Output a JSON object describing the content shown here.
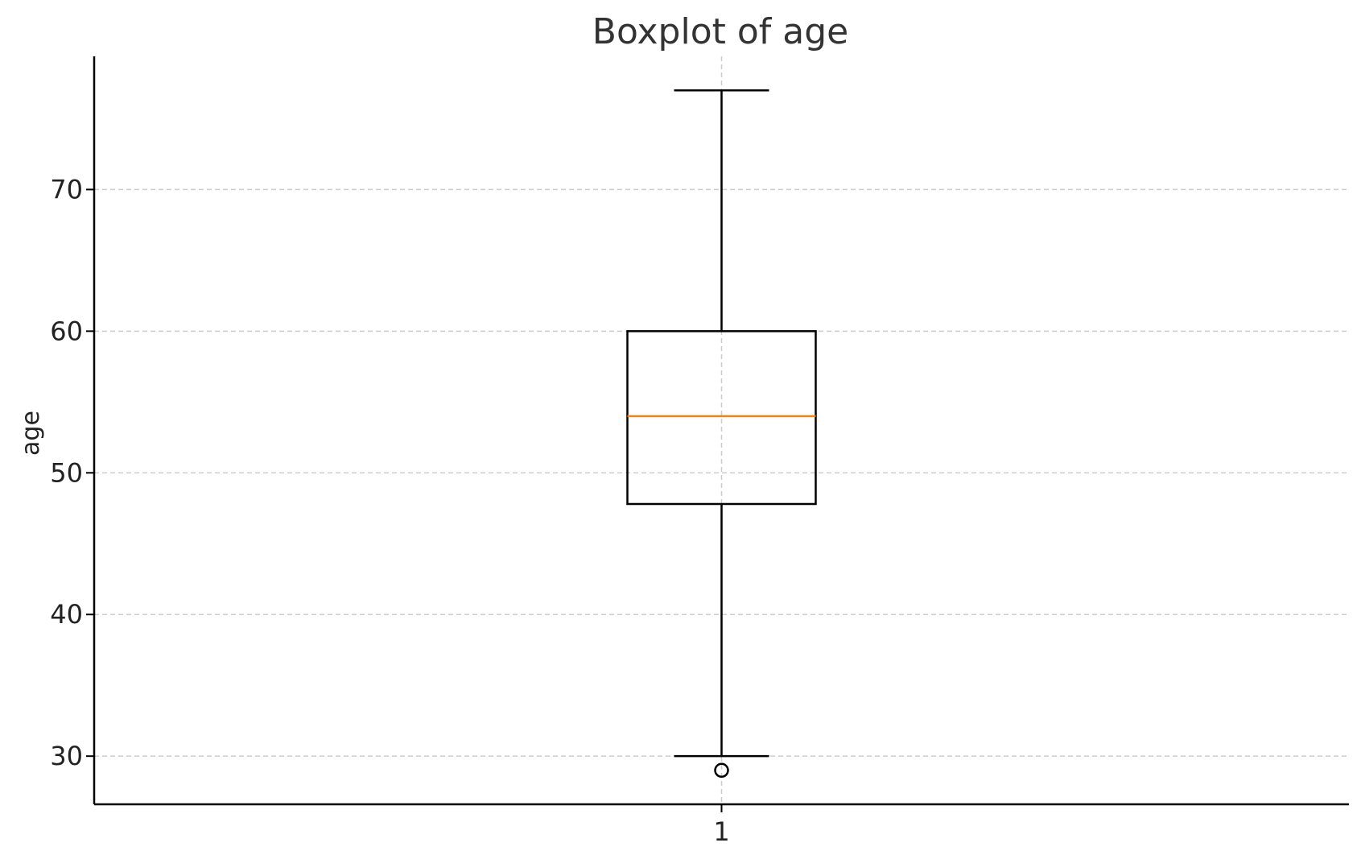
{
  "chart_data": {
    "type": "box",
    "title": "Boxplot of age",
    "xlabel": "",
    "ylabel": "age",
    "categories": [
      "1"
    ],
    "y_ticks": [
      30,
      40,
      50,
      60,
      70
    ],
    "ylim": [
      26.6,
      79.4
    ],
    "grid": true,
    "series": [
      {
        "whisker_low": 30,
        "q1": 47.8,
        "median": 54,
        "q3": 60,
        "whisker_high": 77,
        "outliers": [
          29
        ]
      }
    ],
    "colors": {
      "box": "#000000",
      "median": "#ff7f0e",
      "grid": "#cccccc",
      "axis": "#000000"
    }
  }
}
